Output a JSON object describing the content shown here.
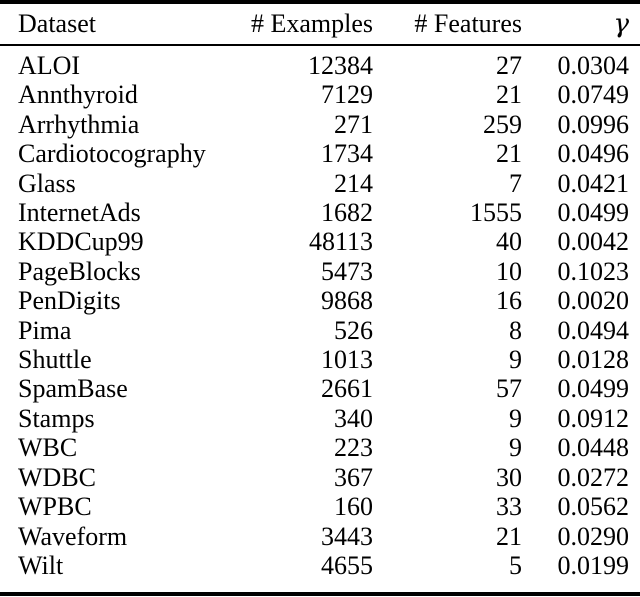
{
  "colors": {
    "text": "#000000",
    "background": "#ffffff",
    "rule": "#000000"
  },
  "table": {
    "headers": [
      "Dataset",
      "# Examples",
      "# Features",
      "γ"
    ],
    "rows": [
      {
        "dataset": "ALOI",
        "examples": "12384",
        "features": "27",
        "gamma": "0.0304"
      },
      {
        "dataset": "Annthyroid",
        "examples": "7129",
        "features": "21",
        "gamma": "0.0749"
      },
      {
        "dataset": "Arrhythmia",
        "examples": "271",
        "features": "259",
        "gamma": "0.0996"
      },
      {
        "dataset": "Cardiotocography",
        "examples": "1734",
        "features": "21",
        "gamma": "0.0496"
      },
      {
        "dataset": "Glass",
        "examples": "214",
        "features": "7",
        "gamma": "0.0421"
      },
      {
        "dataset": "InternetAds",
        "examples": "1682",
        "features": "1555",
        "gamma": "0.0499"
      },
      {
        "dataset": "KDDCup99",
        "examples": "48113",
        "features": "40",
        "gamma": "0.0042"
      },
      {
        "dataset": "PageBlocks",
        "examples": "5473",
        "features": "10",
        "gamma": "0.1023"
      },
      {
        "dataset": "PenDigits",
        "examples": "9868",
        "features": "16",
        "gamma": "0.0020"
      },
      {
        "dataset": "Pima",
        "examples": "526",
        "features": "8",
        "gamma": "0.0494"
      },
      {
        "dataset": "Shuttle",
        "examples": "1013",
        "features": "9",
        "gamma": "0.0128"
      },
      {
        "dataset": "SpamBase",
        "examples": "2661",
        "features": "57",
        "gamma": "0.0499"
      },
      {
        "dataset": "Stamps",
        "examples": "340",
        "features": "9",
        "gamma": "0.0912"
      },
      {
        "dataset": "WBC",
        "examples": "223",
        "features": "9",
        "gamma": "0.0448"
      },
      {
        "dataset": "WDBC",
        "examples": "367",
        "features": "30",
        "gamma": "0.0272"
      },
      {
        "dataset": "WPBC",
        "examples": "160",
        "features": "33",
        "gamma": "0.0562"
      },
      {
        "dataset": "Waveform",
        "examples": "3443",
        "features": "21",
        "gamma": "0.0290"
      },
      {
        "dataset": "Wilt",
        "examples": "4655",
        "features": "5",
        "gamma": "0.0199"
      }
    ]
  }
}
